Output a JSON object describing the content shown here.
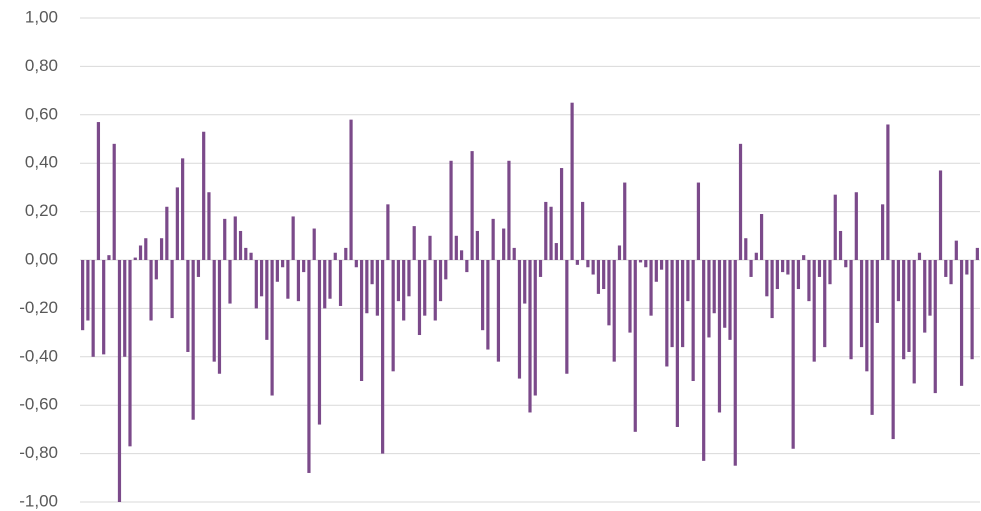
{
  "chart_data": {
    "type": "bar",
    "color": "#7b4a8a",
    "grid": true,
    "ylim": [
      -1,
      1
    ],
    "yticks": [
      {
        "value": -1,
        "label": "-1,00"
      },
      {
        "value": -0.8,
        "label": "-0,80"
      },
      {
        "value": -0.6,
        "label": "-0,60"
      },
      {
        "value": -0.4,
        "label": "-0,40"
      },
      {
        "value": -0.2,
        "label": "-0,20"
      },
      {
        "value": 0,
        "label": "0,00"
      },
      {
        "value": 0.2,
        "label": "0,20"
      },
      {
        "value": 0.4,
        "label": "0,40"
      },
      {
        "value": 0.6,
        "label": "0,60"
      },
      {
        "value": 0.8,
        "label": "0,80"
      },
      {
        "value": 1,
        "label": "1,00"
      }
    ],
    "values": [
      -0.29,
      -0.25,
      -0.4,
      0.57,
      -0.39,
      0.02,
      0.48,
      -1.0,
      -0.4,
      -0.77,
      0.01,
      0.06,
      0.09,
      -0.25,
      -0.08,
      0.09,
      0.22,
      -0.24,
      0.3,
      0.42,
      -0.38,
      -0.66,
      -0.07,
      0.53,
      0.28,
      -0.42,
      -0.47,
      0.17,
      -0.18,
      0.18,
      0.12,
      0.05,
      0.03,
      -0.2,
      -0.15,
      -0.33,
      -0.56,
      -0.09,
      -0.03,
      -0.16,
      0.18,
      -0.17,
      -0.05,
      -0.88,
      0.13,
      -0.68,
      -0.2,
      -0.16,
      0.03,
      -0.19,
      0.05,
      0.58,
      -0.03,
      -0.5,
      -0.22,
      -0.1,
      -0.23,
      -0.8,
      0.23,
      -0.46,
      -0.17,
      -0.25,
      -0.15,
      0.14,
      -0.31,
      -0.23,
      0.1,
      -0.25,
      -0.17,
      -0.08,
      0.41,
      0.1,
      0.04,
      -0.05,
      0.45,
      0.12,
      -0.29,
      -0.37,
      0.17,
      -0.42,
      0.13,
      0.41,
      0.05,
      -0.49,
      -0.18,
      -0.63,
      -0.56,
      -0.07,
      0.24,
      0.22,
      0.07,
      0.38,
      -0.47,
      0.65,
      -0.02,
      0.24,
      -0.03,
      -0.06,
      -0.14,
      -0.12,
      -0.27,
      -0.42,
      0.06,
      0.32,
      -0.3,
      -0.71,
      -0.01,
      -0.03,
      -0.23,
      -0.09,
      -0.04,
      -0.44,
      -0.36,
      -0.69,
      -0.36,
      -0.17,
      -0.5,
      0.32,
      -0.83,
      -0.32,
      -0.22,
      -0.63,
      -0.28,
      -0.33,
      -0.85,
      0.48,
      0.09,
      -0.07,
      0.03,
      0.19,
      -0.15,
      -0.24,
      -0.12,
      -0.05,
      -0.06,
      -0.78,
      -0.12,
      0.02,
      -0.17,
      -0.42,
      -0.07,
      -0.36,
      -0.1,
      0.27,
      0.12,
      -0.03,
      -0.41,
      0.28,
      -0.36,
      -0.46,
      -0.64,
      -0.26,
      0.23,
      0.56,
      -0.74,
      -0.17,
      -0.41,
      -0.38,
      -0.51,
      0.03,
      -0.3,
      -0.23,
      -0.55,
      0.37,
      -0.07,
      -0.1,
      0.08,
      -0.52,
      -0.06,
      -0.41,
      0.05
    ]
  }
}
